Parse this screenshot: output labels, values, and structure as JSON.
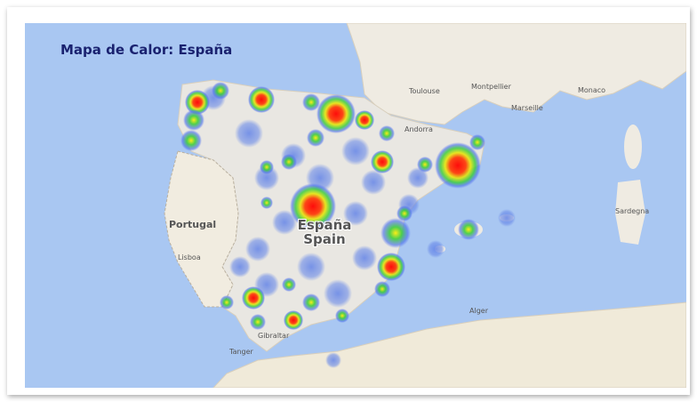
{
  "title": "Mapa de Calor: España",
  "labels": {
    "portugal": "Portugal",
    "espana": "España",
    "spain": "Spain",
    "places": [
      "Toulouse",
      "Montpellier",
      "Monaco",
      "Marseille",
      "Andorra",
      "Sardegna",
      "Alger",
      "Gibraltar",
      "Tanger",
      "Lisboa"
    ]
  }
}
